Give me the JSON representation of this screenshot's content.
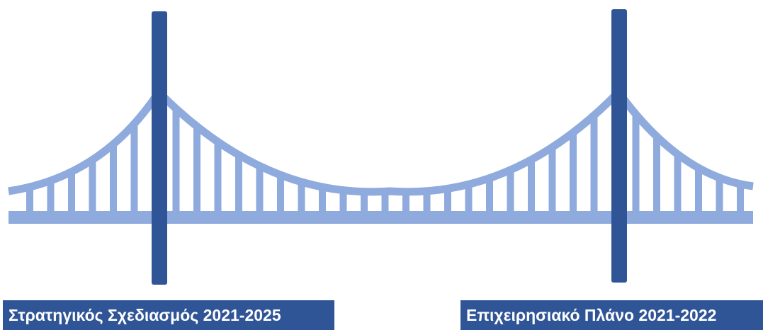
{
  "colors": {
    "tower": "#2f5597",
    "deck": "#8faadc",
    "label_bg": "#2f5597",
    "label_text": "#ffffff"
  },
  "labels": {
    "left": "Στρατηγικός Σχεδιασμός 2021-2025",
    "right": "Επιχειρησιακό Πλάνο 2021-2022"
  }
}
